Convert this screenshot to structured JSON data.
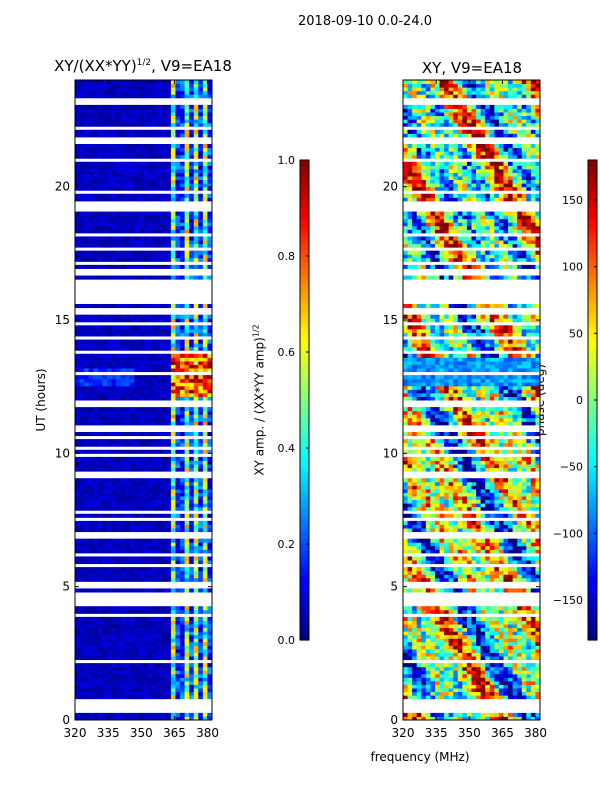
{
  "figure": {
    "suptitle": "2018-09-10 0.0-24.0",
    "shared_xlabel": "frequency (MHz)"
  },
  "chart_data": [
    {
      "type": "heatmap",
      "title_main": "XY/(XX*YY)",
      "title_sup": "1/2",
      "title_rest": ", V9=EA18",
      "xlabel": "",
      "ylabel": "UT (hours)",
      "xlim": [
        320,
        382
      ],
      "ylim": [
        0,
        24
      ],
      "xticks": [
        "320",
        "335",
        "350",
        "365",
        "380"
      ],
      "xtick_values": [
        320,
        335,
        350,
        365,
        380
      ],
      "yticks": [
        "0",
        "5",
        "10",
        "15",
        "20"
      ],
      "ytick_values": [
        0,
        5,
        10,
        15,
        20
      ],
      "colorbar": {
        "label_main": "XY amp. / (XX*YY amp)",
        "label_sup": "1/2",
        "range": [
          0.0,
          1.0
        ],
        "ticks": [
          "0.0",
          "0.2",
          "0.4",
          "0.6",
          "0.8",
          "1.0"
        ],
        "tick_values": [
          0.0,
          0.2,
          0.4,
          0.6,
          0.8,
          1.0
        ]
      }
    },
    {
      "type": "heatmap",
      "title": "XY, V9=EA18",
      "xlabel": "",
      "ylabel": "",
      "xlim": [
        320,
        382
      ],
      "ylim": [
        0,
        24
      ],
      "xticks": [
        "320",
        "335",
        "350",
        "365",
        "380"
      ],
      "xtick_values": [
        320,
        335,
        350,
        365,
        380
      ],
      "yticks": [
        "0",
        "5",
        "10",
        "15",
        "20"
      ],
      "ytick_values": [
        0,
        5,
        10,
        15,
        20
      ],
      "colorbar": {
        "label": "phase (deg)",
        "range": [
          -180,
          180
        ],
        "ticks": [
          "−150",
          "−100",
          "−50",
          "0",
          "50",
          "100",
          "150"
        ],
        "tick_values": [
          -150,
          -100,
          -50,
          0,
          50,
          100,
          150
        ]
      }
    }
  ]
}
